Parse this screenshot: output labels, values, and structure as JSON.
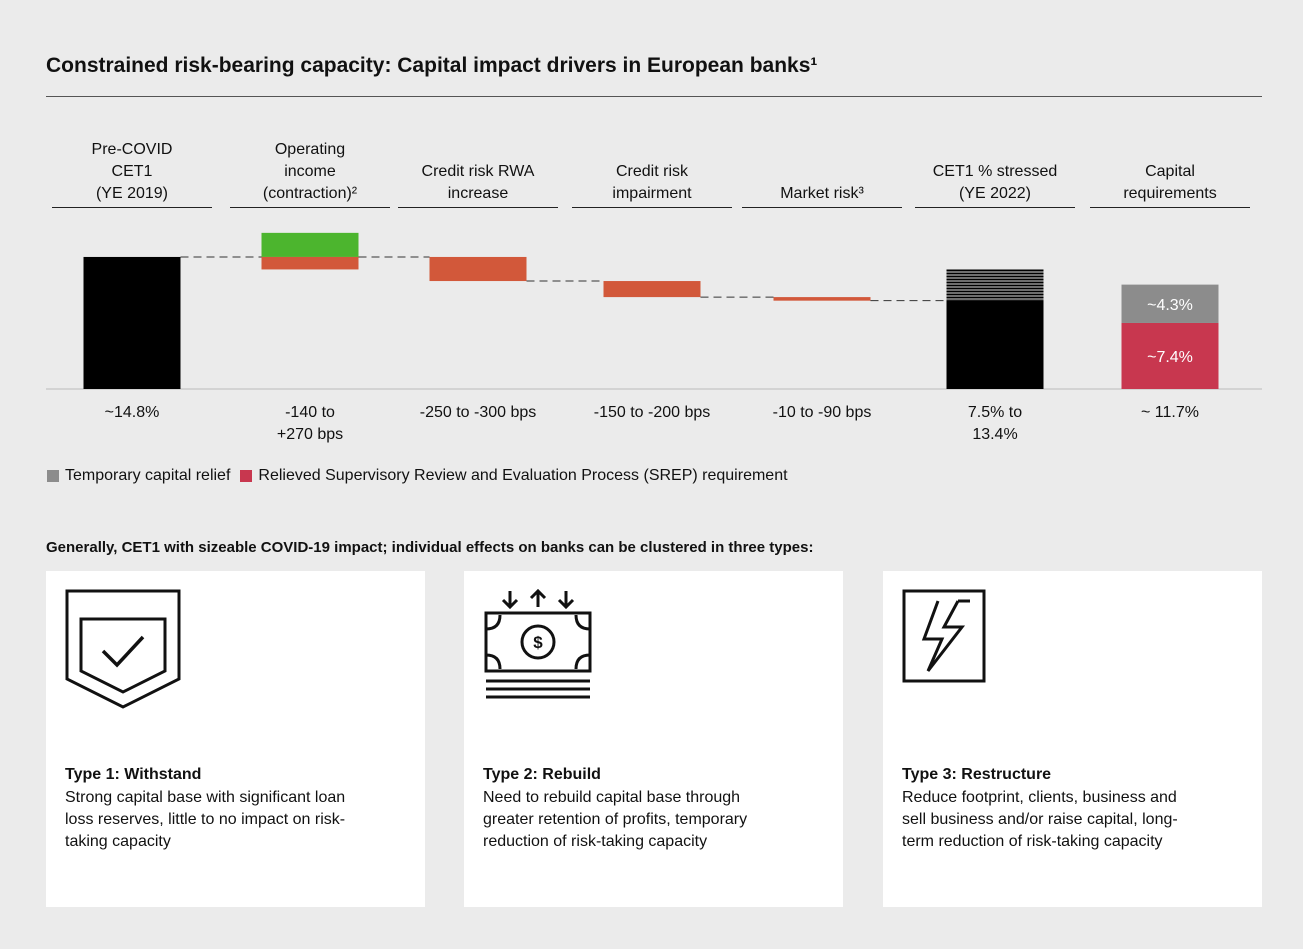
{
  "title": "Constrained risk-bearing capacity: Capital impact drivers in European banks¹",
  "chart_data": {
    "type": "waterfall",
    "categories": [
      "Pre-COVID\nCET1\n(YE 2019)",
      "Operating\nincome\n(contraction)²",
      "Credit risk RWA\nincrease",
      "Credit risk\nimpairment",
      "Market risk³",
      "CET1 % stressed\n(YE 2022)",
      "Capital\nrequirements"
    ],
    "range_labels": [
      "~14.8%",
      "-140 to\n+270 bps",
      "-250 to -300 bps",
      "-150 to -200 bps",
      "-10 to -90 bps",
      "7.5% to\n13.4%",
      "~ 11.7%"
    ],
    "ylim": [
      0,
      18
    ],
    "bars": [
      {
        "kind": "total",
        "values": [
          14.8
        ],
        "colors": [
          "#000000"
        ]
      },
      {
        "kind": "swing",
        "values": [
          2.7,
          -1.4
        ],
        "colors": [
          "#4cb52e",
          "#d2583a"
        ]
      },
      {
        "kind": "delta",
        "values": [
          -2.7
        ],
        "colors": [
          "#d2583a"
        ]
      },
      {
        "kind": "delta",
        "values": [
          -1.8
        ],
        "colors": [
          "#d2583a"
        ]
      },
      {
        "kind": "delta",
        "values": [
          -0.4
        ],
        "colors": [
          "#d2583a"
        ]
      },
      {
        "kind": "total",
        "values": [
          9.9,
          3.5
        ],
        "colors": [
          "#000000",
          "hatch"
        ]
      },
      {
        "kind": "stack",
        "values": [
          7.4,
          4.3
        ],
        "colors": [
          "#c8374f",
          "#8c8c8c"
        ],
        "value_labels": [
          "~7.4%",
          "~4.3%"
        ]
      }
    ],
    "legend": [
      {
        "label": "Temporary capital relief",
        "color": "#8c8c8c"
      },
      {
        "label": "Relieved Supervisory Review and Evaluation Process (SREP) requirement",
        "color": "#c8374f"
      }
    ]
  },
  "subheading": "Generally, CET1 with sizeable COVID-19 impact; individual effects on banks can be clustered in three types:",
  "cards": [
    {
      "title": "Type 1: Withstand",
      "text": "Strong capital base with significant loan loss reserves, little to no impact on risk-taking capacity"
    },
    {
      "title": "Type 2: Rebuild",
      "text": "Need to rebuild capital base through greater retention of profits, temporary reduction of risk-taking capacity"
    },
    {
      "title": "Type 3: Restructure",
      "text": "Reduce footprint, clients, business and sell business and/or raise capital, long-term reduction of risk-taking capacity"
    }
  ]
}
